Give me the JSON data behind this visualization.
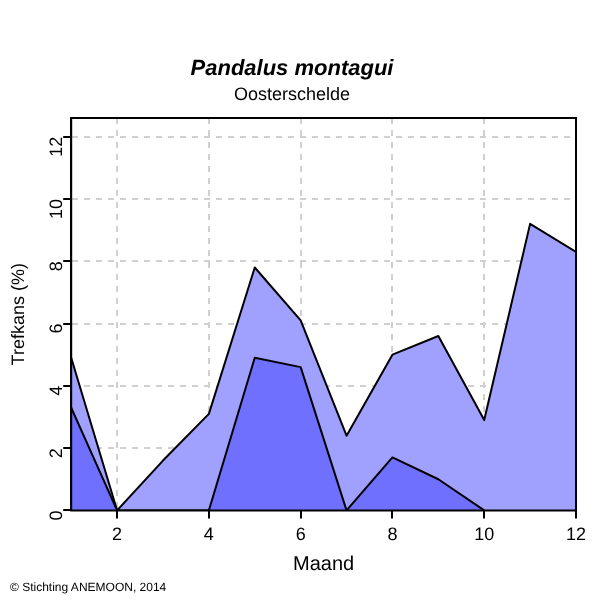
{
  "chart_data": {
    "type": "area",
    "title": "Pandalus montagui",
    "subtitle": "Oosterschelde",
    "xlabel": "Maand",
    "ylabel": "Trefkans (%)",
    "x": [
      1,
      2,
      3,
      4,
      5,
      6,
      7,
      8,
      9,
      10,
      11,
      12
    ],
    "series": [
      {
        "color": "#a0a0ff",
        "values": [
          4.9,
          0,
          1.6,
          3.1,
          7.8,
          6.1,
          2.4,
          5.0,
          5.6,
          2.9,
          9.2,
          8.3
        ]
      },
      {
        "color": "#7070ff",
        "values": [
          3.3,
          0,
          0,
          0,
          4.9,
          4.6,
          0,
          1.7,
          1.0,
          0,
          null,
          null
        ]
      }
    ],
    "xlim": [
      1,
      12
    ],
    "xticks": [
      2,
      4,
      6,
      8,
      10,
      12
    ],
    "ylim": [
      0,
      12.6
    ],
    "yticks": [
      0,
      2,
      4,
      6,
      8,
      10,
      12
    ],
    "grid": true,
    "annotations": [
      "© Stichting ANEMOON, 2014"
    ]
  }
}
